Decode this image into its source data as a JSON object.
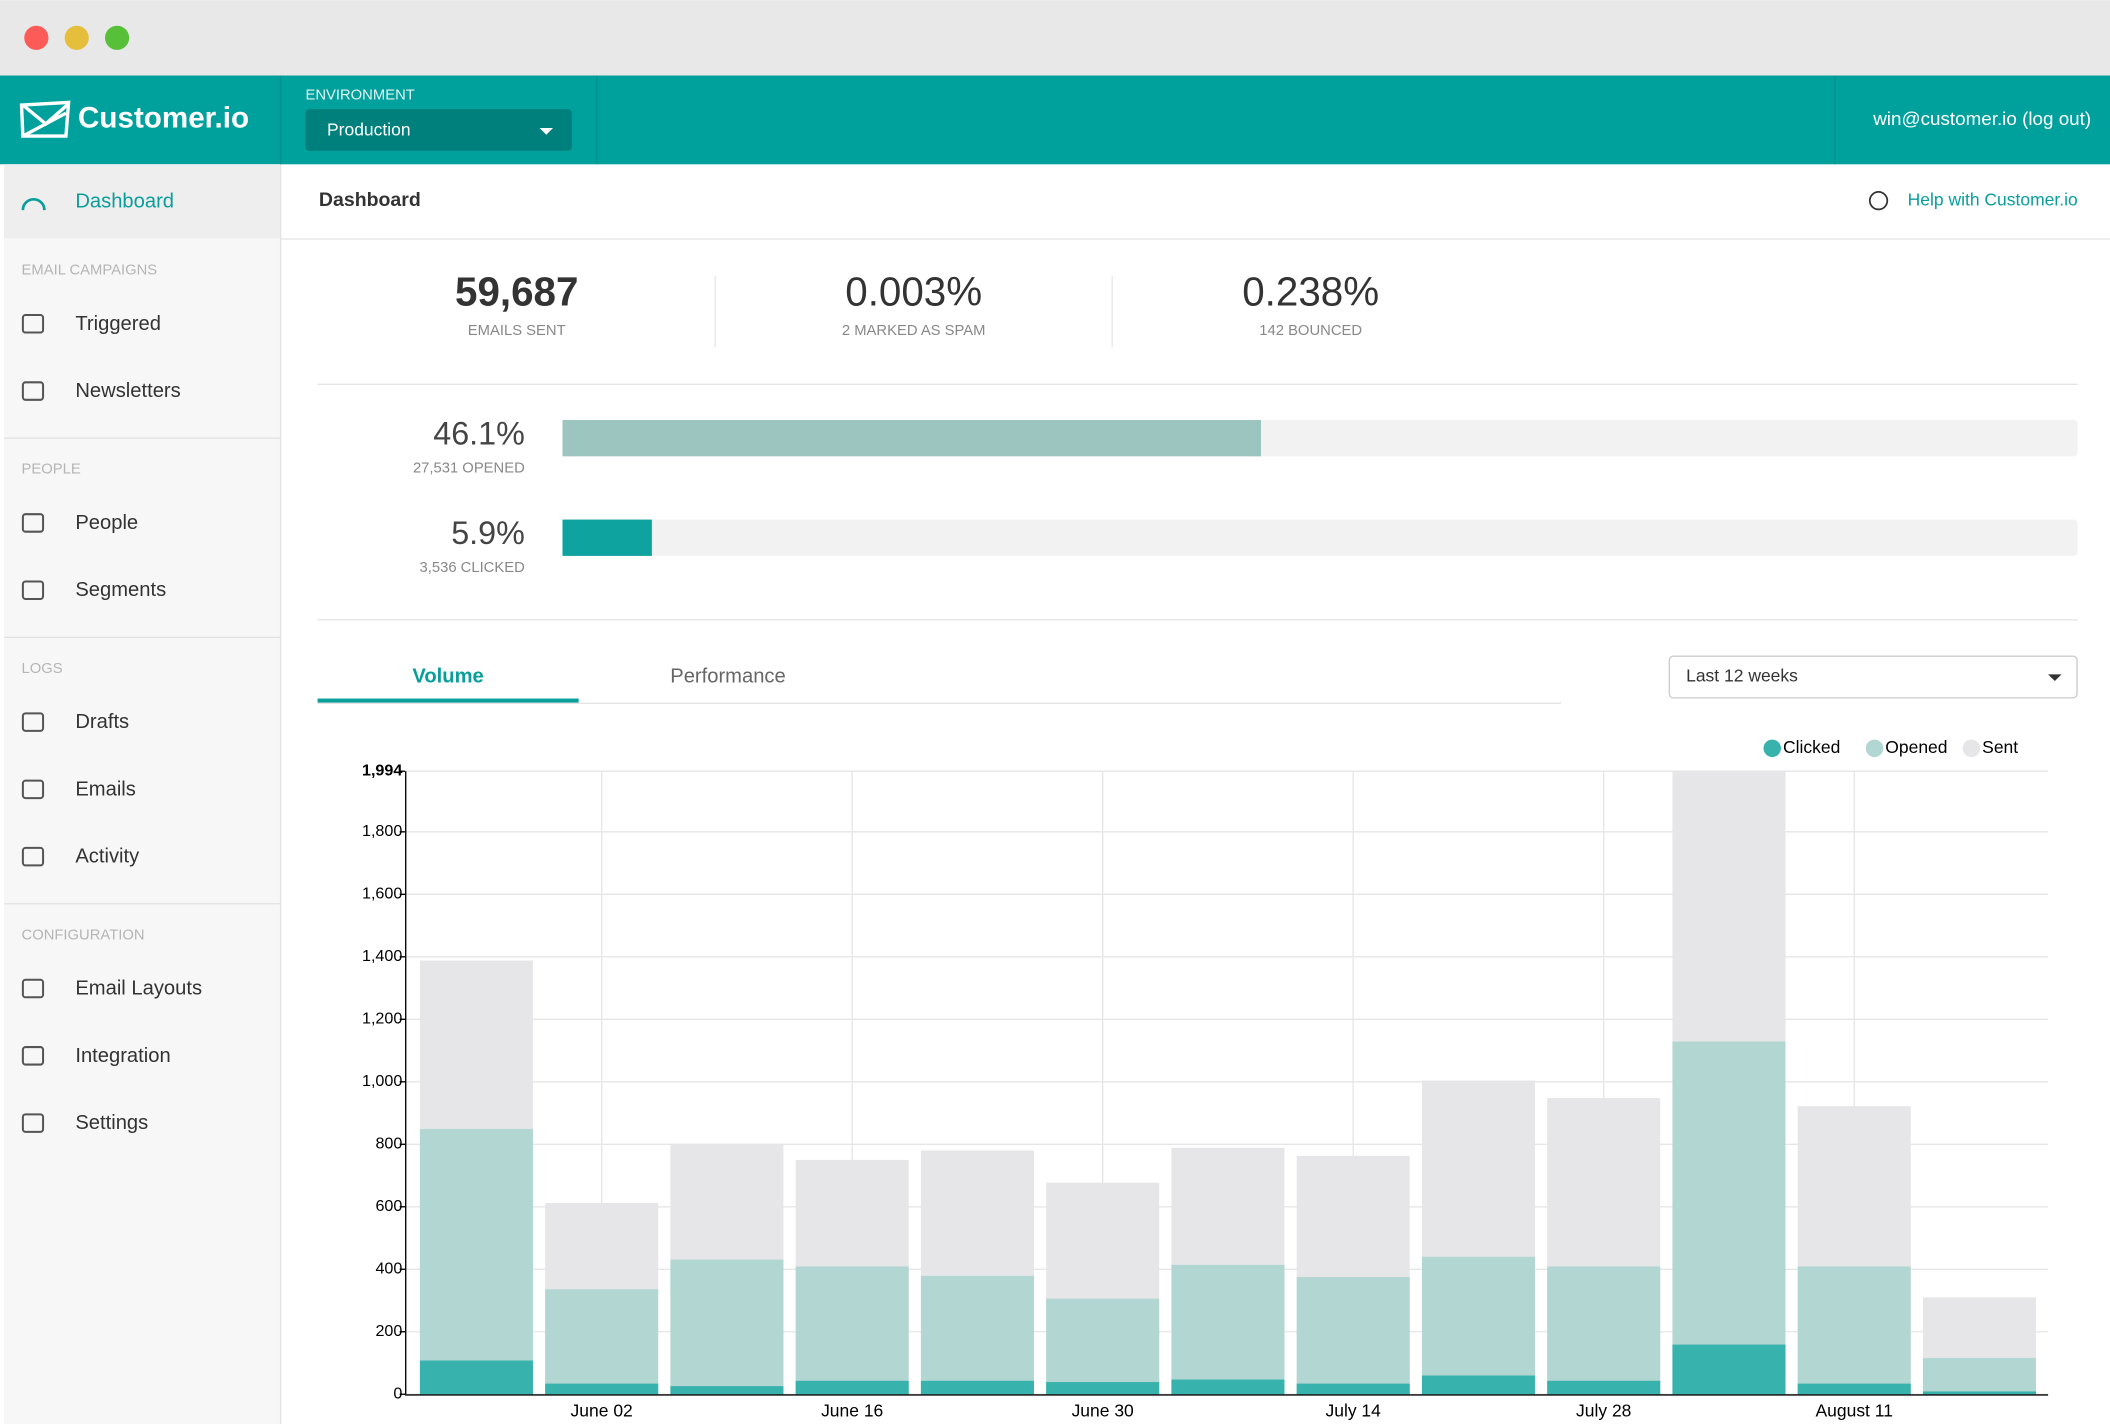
{
  "header": {
    "logo": "Customer.io",
    "environment_label": "ENVIRONMENT",
    "environment": "Production",
    "user": "win@customer.io (log out)"
  },
  "sidebar": {
    "active": "Dashboard",
    "sections": [
      {
        "title": "EMAIL CAMPAIGNS",
        "items": [
          "Triggered",
          "Newsletters"
        ]
      },
      {
        "title": "PEOPLE",
        "items": [
          "People",
          "Segments"
        ]
      },
      {
        "title": "LOGS",
        "items": [
          "Drafts",
          "Emails",
          "Activity"
        ]
      },
      {
        "title": "CONFIGURATION",
        "items": [
          "Email Layouts",
          "Integration",
          "Settings"
        ]
      }
    ]
  },
  "page": {
    "title": "Dashboard",
    "help": "Help with Customer.io"
  },
  "stats": [
    {
      "value": "59,687",
      "label": "EMAILS SENT"
    },
    {
      "value": "0.003%",
      "label": "2 MARKED AS SPAM"
    },
    {
      "value": "0.238%",
      "label": "142 BOUNCED"
    }
  ],
  "rates": [
    {
      "value": 46.1,
      "value_label": "46.1%",
      "caption": "27,531 OPENED",
      "color": "#9dc5c0"
    },
    {
      "value": 5.9,
      "value_label": "5.9%",
      "caption": "3,536 CLICKED",
      "color": "#0fa3a0"
    }
  ],
  "tabs": {
    "items": [
      "Volume",
      "Performance"
    ],
    "range": "Last 12 weeks"
  },
  "chart_data": {
    "type": "bar",
    "overlay": true,
    "categories": [
      null,
      "June 02",
      null,
      "June 16",
      null,
      "June 30",
      null,
      "July 14",
      null,
      "July 28",
      null,
      "August 11",
      null
    ],
    "series": [
      {
        "name": "Sent",
        "color": "#e6e6e8",
        "values": [
          1388,
          612,
          802,
          750,
          780,
          677,
          789,
          763,
          1004,
          948,
          1994,
          922,
          310
        ]
      },
      {
        "name": "Opened",
        "color": "#b2d6d1",
        "values": [
          849,
          336,
          431,
          409,
          379,
          306,
          414,
          375,
          440,
          409,
          1129,
          409,
          116
        ]
      },
      {
        "name": "Clicked",
        "color": "#38b2ad",
        "values": [
          108,
          34,
          26,
          43,
          43,
          39,
          47,
          34,
          60,
          43,
          159,
          34,
          9
        ]
      }
    ],
    "legend_order": [
      "Clicked",
      "Opened",
      "Sent"
    ],
    "ylim": [
      0,
      1994
    ],
    "yticks": [
      0,
      200,
      400,
      600,
      800,
      {
        "value": 1000,
        "label": "1,000"
      },
      {
        "value": 1200,
        "label": "1,200"
      },
      {
        "value": 1400,
        "label": "1,400"
      },
      {
        "value": 1600,
        "label": "1,600"
      },
      {
        "value": 1800,
        "label": "1,800"
      },
      {
        "value": 1994,
        "label": "1,994"
      }
    ],
    "grid": true
  }
}
